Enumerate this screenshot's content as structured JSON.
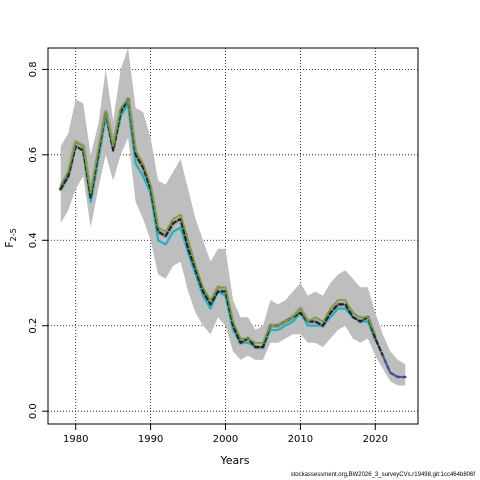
{
  "chart_data": {
    "type": "line",
    "xlabel": "Years",
    "ylabel_main": "F",
    "ylabel_sub": "2-5",
    "xlim": [
      1976.3,
      2025.7
    ],
    "ylim": [
      -0.03,
      0.85
    ],
    "x_ticks": [
      1980,
      1990,
      2000,
      2010,
      2020
    ],
    "y_ticks": [
      0.0,
      0.2,
      0.4,
      0.6,
      0.8
    ],
    "x_tick_labels": [
      "1980",
      "1990",
      "2000",
      "2010",
      "2020"
    ],
    "y_tick_labels": [
      "0.0",
      "0.2",
      "0.4",
      "0.6",
      "0.8"
    ],
    "grid": true,
    "source_note": "stockassessment.org,BW2026_3_surveyCVs,r19498,git:1cc464b806f",
    "band": {
      "color": "#bebebe",
      "x": [
        1978,
        1979,
        1980,
        1981,
        1982,
        1983,
        1984,
        1985,
        1986,
        1987,
        1988,
        1989,
        1990,
        1991,
        1992,
        1993,
        1994,
        1995,
        1996,
        1997,
        1998,
        1999,
        2000,
        2001,
        2002,
        2003,
        2004,
        2005,
        2006,
        2007,
        2008,
        2009,
        2010,
        2011,
        2012,
        2013,
        2014,
        2015,
        2016,
        2017,
        2018,
        2019,
        2020,
        2021,
        2022,
        2023,
        2024
      ],
      "upper": [
        0.62,
        0.65,
        0.73,
        0.72,
        0.6,
        0.67,
        0.8,
        0.68,
        0.8,
        0.85,
        0.71,
        0.7,
        0.64,
        0.54,
        0.53,
        0.56,
        0.59,
        0.52,
        0.45,
        0.4,
        0.35,
        0.38,
        0.38,
        0.26,
        0.22,
        0.22,
        0.19,
        0.2,
        0.26,
        0.25,
        0.26,
        0.28,
        0.3,
        0.27,
        0.28,
        0.27,
        0.3,
        0.32,
        0.33,
        0.31,
        0.29,
        0.29,
        0.23,
        0.18,
        0.14,
        0.12,
        0.11
      ],
      "lower": [
        0.44,
        0.47,
        0.52,
        0.55,
        0.43,
        0.52,
        0.6,
        0.54,
        0.6,
        0.64,
        0.49,
        0.45,
        0.4,
        0.32,
        0.31,
        0.34,
        0.35,
        0.28,
        0.23,
        0.2,
        0.18,
        0.22,
        0.2,
        0.14,
        0.12,
        0.13,
        0.12,
        0.12,
        0.16,
        0.16,
        0.17,
        0.18,
        0.18,
        0.16,
        0.16,
        0.15,
        0.17,
        0.19,
        0.2,
        0.17,
        0.16,
        0.17,
        0.13,
        0.1,
        0.07,
        0.06,
        0.06
      ]
    },
    "x": [
      1978,
      1979,
      1980,
      1981,
      1982,
      1983,
      1984,
      1985,
      1986,
      1987,
      1988,
      1989,
      1990,
      1991,
      1992,
      1993,
      1994,
      1995,
      1996,
      1997,
      1998,
      1999,
      2000,
      2001,
      2002,
      2003,
      2004,
      2005,
      2006,
      2007,
      2008,
      2009,
      2010,
      2011,
      2012,
      2013,
      2014,
      2015,
      2016,
      2017,
      2018,
      2019,
      2020,
      2021,
      2022,
      2023,
      2024
    ],
    "series": [
      {
        "color": "#a0a0a0",
        "dash": false,
        "width": 4.5,
        "values": [
          0.52,
          0.55,
          0.63,
          0.62,
          0.5,
          0.6,
          0.7,
          0.62,
          0.7,
          0.73,
          0.6,
          0.57,
          0.52,
          0.42,
          0.41,
          0.44,
          0.45,
          0.39,
          0.33,
          0.28,
          0.25,
          0.29,
          0.28,
          0.2,
          0.16,
          0.17,
          0.15,
          0.15,
          0.2,
          0.2,
          0.21,
          0.22,
          0.24,
          0.21,
          0.21,
          0.2,
          0.23,
          0.25,
          0.25,
          0.23,
          0.21,
          0.22,
          0.17,
          null,
          null,
          null,
          null
        ]
      },
      {
        "color": "#20b0c8",
        "dash": false,
        "width": 2.2,
        "values": [
          0.52,
          0.55,
          0.62,
          0.61,
          0.49,
          0.59,
          0.69,
          0.61,
          0.69,
          0.72,
          0.58,
          0.55,
          0.51,
          0.4,
          0.39,
          0.42,
          0.43,
          0.37,
          0.32,
          0.27,
          0.24,
          0.28,
          0.27,
          0.19,
          0.16,
          0.16,
          0.15,
          0.15,
          0.19,
          0.19,
          0.2,
          0.21,
          0.23,
          0.2,
          0.2,
          0.2,
          0.22,
          0.24,
          0.24,
          0.22,
          0.21,
          0.21,
          0.17,
          0.13,
          0.09,
          0.08,
          0.08
        ]
      },
      {
        "color": "#222222",
        "dash": true,
        "width": 2.2,
        "values": [
          0.52,
          0.55,
          0.62,
          0.61,
          0.5,
          0.6,
          0.7,
          0.61,
          0.7,
          0.73,
          0.6,
          0.57,
          0.52,
          0.42,
          0.41,
          0.44,
          0.45,
          0.38,
          0.33,
          0.28,
          0.25,
          0.28,
          0.28,
          0.2,
          0.16,
          0.17,
          0.15,
          0.15,
          0.2,
          0.2,
          0.21,
          0.22,
          0.23,
          0.21,
          0.21,
          0.2,
          0.23,
          0.25,
          0.25,
          0.22,
          0.21,
          0.22,
          0.17,
          0.13,
          0.09,
          0.08,
          0.08
        ]
      },
      {
        "color": "#4a5aa8",
        "dash": false,
        "width": 1.6,
        "values": [
          null,
          null,
          null,
          null,
          null,
          null,
          null,
          null,
          null,
          null,
          null,
          null,
          null,
          null,
          null,
          null,
          null,
          null,
          null,
          null,
          null,
          null,
          null,
          null,
          null,
          null,
          null,
          null,
          null,
          null,
          null,
          null,
          null,
          null,
          null,
          null,
          null,
          null,
          null,
          null,
          null,
          null,
          null,
          0.13,
          0.09,
          0.08,
          0.08
        ]
      },
      {
        "color": "#7b9a2c",
        "dash": false,
        "width": 1.6,
        "values": [
          0.53,
          0.56,
          0.63,
          0.62,
          0.51,
          0.61,
          0.7,
          0.62,
          0.71,
          0.73,
          0.61,
          0.58,
          0.53,
          0.43,
          0.42,
          0.45,
          0.46,
          0.4,
          0.34,
          0.29,
          0.26,
          0.29,
          0.29,
          0.21,
          0.17,
          0.17,
          0.16,
          0.16,
          0.2,
          0.2,
          0.21,
          0.22,
          0.24,
          0.21,
          0.22,
          0.21,
          0.24,
          0.26,
          0.26,
          0.23,
          0.22,
          0.22,
          0.18,
          null,
          null,
          null,
          null
        ]
      }
    ]
  }
}
